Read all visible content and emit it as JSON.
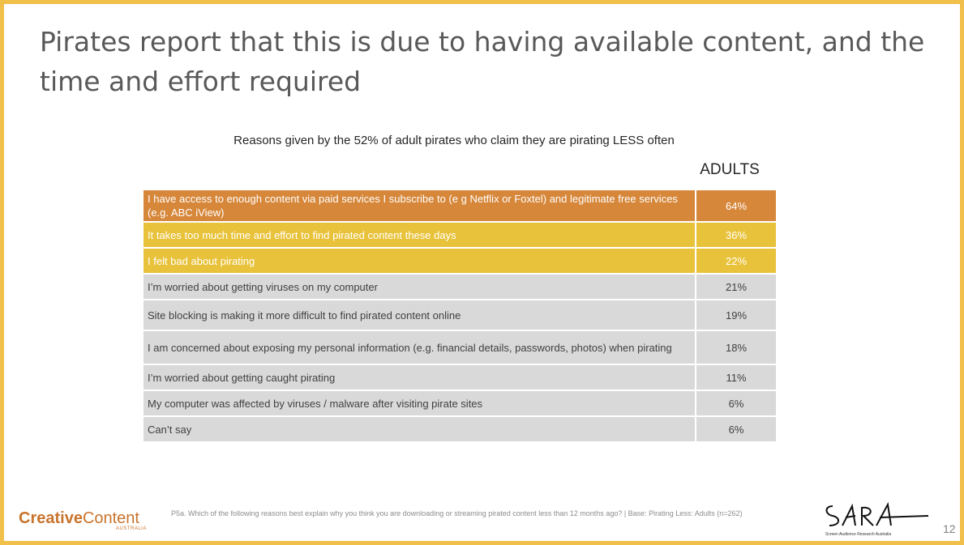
{
  "slide": {
    "title": "Pirates report that this is due to having available content, and the time and effort required",
    "page_number": "12"
  },
  "chart_data": {
    "type": "table",
    "title": "Reasons given by the 52% of adult pirates who claim they are pirating LESS often",
    "column_header": "ADULTS",
    "categories": [
      "I have access to enough content via paid services I subscribe to (e g  Netflix or Foxtel) and legitimate free services (e.g.  ABC iView)",
      "It takes too much time and effort to find pirated content these days",
      "I felt bad about pirating",
      "I’m worried about getting viruses on my computer",
      "Site blocking is making it more difficult to find pirated content online",
      "I am concerned about exposing my personal information (e.g.  financial details, passwords, photos) when pirating",
      "I’m worried about getting caught pirating",
      "My computer was affected by viruses / malware after visiting pirate sites",
      "Can’t say"
    ],
    "value_labels": [
      "64%",
      "36%",
      "22%",
      "21%",
      "19%",
      "18%",
      "11%",
      "6%",
      "6%"
    ],
    "values": [
      64,
      36,
      22,
      21,
      19,
      18,
      11,
      6,
      6
    ],
    "tiers": [
      1,
      2,
      2,
      3,
      3,
      3,
      3,
      3,
      3
    ],
    "colors": {
      "tier1": "#d6873a",
      "tier2": "#e8c23a",
      "tier3": "#d9d9d9",
      "border": "#f0c04a"
    }
  },
  "footer": {
    "logo_strong": "Creative",
    "logo_light": "Content",
    "logo_sub": "AUSTRALIA",
    "note": "P5a. Which of the following reasons best explain why you think you are downloading or streaming pirated content less than 12 months ago? | Base: Pirating Less: Adults (n=262)",
    "sara_caption": "Screen Audience Research Australia"
  }
}
